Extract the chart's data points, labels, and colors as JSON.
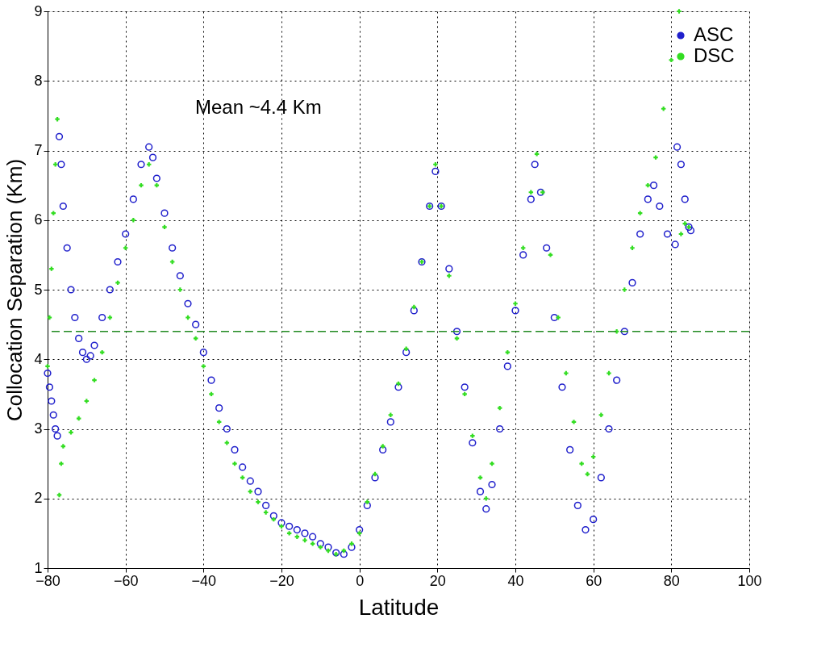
{
  "chart_data": {
    "type": "scatter",
    "xlabel": "Latitude",
    "ylabel": "Collocation Separation (Km)",
    "annotations": [
      "Mean ~4.4 Km"
    ],
    "xlim": [
      -80,
      100
    ],
    "xticks": [
      -80,
      -60,
      -40,
      -20,
      0,
      20,
      40,
      60,
      80,
      100
    ],
    "ylim": [
      1,
      9
    ],
    "yticks": [
      1,
      2,
      3,
      4,
      5,
      6,
      7,
      8,
      9
    ],
    "grid": true,
    "legend": "top right",
    "ref_lines": [
      {
        "axis": "y",
        "value": 4.4,
        "color": "#228b22",
        "line_style": "dashed"
      }
    ],
    "series": [
      {
        "name": "ASC",
        "color": "#2020cc",
        "marker": "circle",
        "x": [
          -80,
          -79.5,
          -79,
          -78.5,
          -78,
          -77.5,
          -77,
          -76.5,
          -76,
          -75,
          -74,
          -73,
          -72,
          -71,
          -70,
          -69,
          -68,
          -66,
          -64,
          -62,
          -60,
          -58,
          -56,
          -54,
          -53,
          -52,
          -50,
          -48,
          -46,
          -44,
          -42,
          -40,
          -38,
          -36,
          -34,
          -32,
          -30,
          -28,
          -26,
          -24,
          -22,
          -20,
          -18,
          -16,
          -14,
          -12,
          -10,
          -8,
          -6,
          -4,
          -2,
          0,
          2,
          4,
          6,
          8,
          10,
          12,
          14,
          16,
          18,
          19.5,
          21,
          23,
          25,
          27,
          29,
          31,
          32.5,
          34,
          36,
          38,
          40,
          42,
          44,
          45,
          46.5,
          48,
          50,
          52,
          54,
          56,
          58,
          60,
          62,
          64,
          66,
          68,
          70,
          72,
          74,
          75.5,
          77,
          79,
          81,
          81.5,
          82.5,
          83.5,
          84.5,
          85
        ],
        "values": [
          3.8,
          3.6,
          3.4,
          3.2,
          3.0,
          2.9,
          7.2,
          6.8,
          6.2,
          5.6,
          5.0,
          4.6,
          4.3,
          4.1,
          4.0,
          4.05,
          4.2,
          4.6,
          5.0,
          5.4,
          5.8,
          6.3,
          6.8,
          7.05,
          6.9,
          6.6,
          6.1,
          5.6,
          5.2,
          4.8,
          4.5,
          4.1,
          3.7,
          3.3,
          3.0,
          2.7,
          2.45,
          2.25,
          2.1,
          1.9,
          1.75,
          1.65,
          1.6,
          1.55,
          1.5,
          1.45,
          1.35,
          1.3,
          1.22,
          1.2,
          1.3,
          1.55,
          1.9,
          2.3,
          2.7,
          3.1,
          3.6,
          4.1,
          4.7,
          5.4,
          6.2,
          6.7,
          6.2,
          5.3,
          4.4,
          3.6,
          2.8,
          2.1,
          1.85,
          2.2,
          3.0,
          3.9,
          4.7,
          5.5,
          6.3,
          6.8,
          6.4,
          5.6,
          4.6,
          3.6,
          2.7,
          1.9,
          1.55,
          1.7,
          2.3,
          3.0,
          3.7,
          4.4,
          5.1,
          5.8,
          6.3,
          6.5,
          6.2,
          5.8,
          5.65,
          7.05,
          6.8,
          6.3,
          5.9,
          5.85
        ]
      },
      {
        "name": "DSC",
        "color": "#33dd22",
        "marker": "cross",
        "x": [
          -80,
          -79.5,
          -79,
          -78.5,
          -78,
          -77.5,
          -77,
          -76.5,
          -76,
          -74,
          -72,
          -70,
          -68,
          -66,
          -64,
          -62,
          -60,
          -58,
          -56,
          -54,
          -52,
          -50,
          -48,
          -46,
          -44,
          -42,
          -40,
          -38,
          -36,
          -34,
          -32,
          -30,
          -28,
          -26,
          -24,
          -22,
          -20,
          -18,
          -16,
          -14,
          -12,
          -10,
          -8,
          -6,
          -4,
          -2,
          0,
          2,
          4,
          6,
          8,
          10,
          12,
          14,
          16,
          18,
          19.5,
          21,
          23,
          25,
          27,
          29,
          31,
          32.5,
          34,
          36,
          38,
          40,
          42,
          44,
          45.5,
          47,
          49,
          51,
          53,
          55,
          57,
          58.5,
          60,
          62,
          64,
          66,
          68,
          70,
          72,
          74,
          76,
          78,
          80,
          82,
          82.5,
          83.5,
          84.5
        ],
        "values": [
          3.9,
          4.6,
          5.3,
          6.1,
          6.8,
          7.45,
          2.05,
          2.5,
          2.75,
          2.95,
          3.15,
          3.4,
          3.7,
          4.1,
          4.6,
          5.1,
          5.6,
          6.0,
          6.5,
          6.8,
          6.5,
          5.9,
          5.4,
          5.0,
          4.6,
          4.3,
          3.9,
          3.5,
          3.1,
          2.8,
          2.5,
          2.3,
          2.1,
          1.95,
          1.8,
          1.7,
          1.6,
          1.5,
          1.45,
          1.4,
          1.35,
          1.3,
          1.25,
          1.2,
          1.25,
          1.35,
          1.5,
          1.95,
          2.35,
          2.75,
          3.2,
          3.65,
          4.15,
          4.75,
          5.4,
          6.2,
          6.8,
          6.2,
          5.2,
          4.3,
          3.5,
          2.9,
          2.3,
          2.0,
          2.5,
          3.3,
          4.1,
          4.8,
          5.6,
          6.4,
          6.95,
          6.4,
          5.5,
          4.6,
          3.8,
          3.1,
          2.5,
          2.35,
          2.6,
          3.2,
          3.8,
          4.4,
          5.0,
          5.6,
          6.1,
          6.5,
          6.9,
          7.6,
          8.3,
          9.0,
          5.8,
          5.95,
          5.9
        ]
      }
    ]
  }
}
